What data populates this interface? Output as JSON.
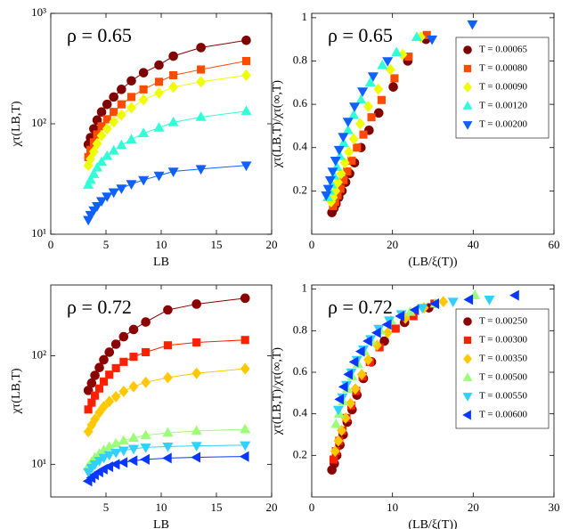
{
  "chart_data": [
    {
      "type": "line",
      "annotation": "ρ = 0.65",
      "xlabel": "LB",
      "ylabel": "χτ(LB,T)",
      "xlim": [
        0,
        20
      ],
      "xticks": [
        0,
        5,
        10,
        15,
        20
      ],
      "ylim": [
        10,
        1000
      ],
      "yscale": "log",
      "yticks": [
        {
          "value": 10,
          "label": "10¹"
        },
        {
          "value": 100,
          "label": "10²"
        },
        {
          "value": 1000,
          "label": "10³"
        }
      ],
      "x": [
        3.4,
        3.6,
        3.9,
        4.2,
        4.6,
        5.1,
        5.7,
        6.4,
        7.3,
        8.4,
        9.8,
        11.1,
        13.6,
        17.7
      ],
      "series": [
        {
          "color": "#800000",
          "marker": "o",
          "values": [
            65,
            75,
            90,
            108,
            128,
            150,
            175,
            205,
            245,
            290,
            340,
            410,
            490,
            570
          ]
        },
        {
          "color": "#ff4a00",
          "marker": "s",
          "values": [
            50,
            58,
            68,
            80,
            95,
            110,
            128,
            150,
            175,
            205,
            240,
            275,
            310,
            370
          ]
        },
        {
          "color": "#eeff00",
          "marker": "D",
          "values": [
            42,
            48,
            56,
            66,
            78,
            90,
            104,
            120,
            140,
            165,
            190,
            215,
            240,
            275
          ]
        },
        {
          "color": "#30ffd8",
          "marker": "^",
          "values": [
            28,
            31,
            35,
            40,
            45,
            51,
            57,
            64,
            72,
            82,
            92,
            103,
            115,
            130
          ]
        },
        {
          "color": "#1060ff",
          "marker": "v",
          "values": [
            13.5,
            15,
            16.5,
            18,
            20,
            22,
            24,
            26,
            28.5,
            31,
            34,
            37,
            39,
            42
          ]
        }
      ]
    },
    {
      "type": "scatter",
      "annotation": "ρ = 0.65",
      "xlabel": "(LB/ξ(T))",
      "ylabel": "χτ(LB,T)/χτ(∞,T)",
      "xlim": [
        0,
        60
      ],
      "xticks": [
        0,
        20,
        40,
        60
      ],
      "ylim": [
        0,
        1.02
      ],
      "yticks": [
        0.2,
        0.4,
        0.6,
        0.8,
        1
      ],
      "legend": "upper right",
      "series": [
        {
          "name": "T = 0.00065",
          "color": "#800000",
          "marker": "o",
          "x": [
            5,
            5.5,
            6,
            6.7,
            7.5,
            8.4,
            9.4,
            10.6,
            12.2,
            14.2,
            16.6,
            20.2,
            23.8,
            28.3
          ],
          "values": [
            0.1,
            0.12,
            0.14,
            0.17,
            0.2,
            0.24,
            0.28,
            0.33,
            0.4,
            0.48,
            0.56,
            0.68,
            0.8,
            0.9
          ]
        },
        {
          "name": "T = 0.00080",
          "color": "#ff4a00",
          "marker": "s",
          "x": [
            5.3,
            5.8,
            6.4,
            7.1,
            7.9,
            8.8,
            9.9,
            11.2,
            12.8,
            14.8,
            17.3,
            20.5,
            24,
            28.5
          ],
          "values": [
            0.13,
            0.15,
            0.18,
            0.21,
            0.25,
            0.29,
            0.34,
            0.4,
            0.46,
            0.54,
            0.62,
            0.72,
            0.82,
            0.92
          ]
        },
        {
          "name": "T = 0.00090",
          "color": "#eeff00",
          "marker": "D",
          "x": [
            4.8,
            5.3,
            5.9,
            6.5,
            7.3,
            8.2,
            9.2,
            10.4,
            12,
            14,
            16.5,
            19.5,
            22.5,
            27
          ],
          "values": [
            0.15,
            0.17,
            0.2,
            0.24,
            0.28,
            0.33,
            0.38,
            0.44,
            0.51,
            0.59,
            0.67,
            0.76,
            0.83,
            0.91
          ]
        },
        {
          "name": "T = 0.00120",
          "color": "#30ffd8",
          "marker": "^",
          "x": [
            4,
            4.4,
            4.9,
            5.5,
            6.2,
            7,
            7.9,
            9,
            10.4,
            12.2,
            14.5,
            17.5,
            21,
            26
          ],
          "values": [
            0.17,
            0.2,
            0.23,
            0.27,
            0.31,
            0.36,
            0.42,
            0.48,
            0.55,
            0.62,
            0.7,
            0.78,
            0.84,
            0.91
          ]
        },
        {
          "name": "T = 0.00200",
          "color": "#1060ff",
          "marker": "v",
          "x": [
            3.6,
            4.1,
            4.6,
            5.2,
            5.9,
            6.8,
            7.8,
            9,
            10.6,
            12.6,
            15.2,
            18.8,
            29.8,
            39.8
          ],
          "values": [
            0.18,
            0.21,
            0.25,
            0.29,
            0.34,
            0.39,
            0.45,
            0.52,
            0.59,
            0.66,
            0.73,
            0.8,
            0.9,
            0.97
          ]
        }
      ]
    },
    {
      "type": "line",
      "annotation": "ρ = 0.72",
      "xlabel": "LB",
      "ylabel": "χτ(LB,T)",
      "xlim": [
        0,
        20
      ],
      "xticks": [
        5,
        10,
        15,
        20
      ],
      "ylim": [
        5,
        450
      ],
      "yscale": "log",
      "yticks": [
        {
          "value": 10,
          "label": "10¹"
        },
        {
          "value": 100,
          "label": "10²"
        }
      ],
      "x": [
        3.4,
        3.7,
        4,
        4.4,
        4.8,
        5.3,
        5.9,
        6.6,
        7.5,
        8.6,
        10.6,
        13.2,
        17.6
      ],
      "series": [
        {
          "color": "#8b0000",
          "marker": "o",
          "values": [
            48,
            56,
            66,
            78,
            92,
            108,
            128,
            150,
            175,
            205,
            265,
            300,
            340
          ]
        },
        {
          "color": "#ff2000",
          "marker": "s",
          "values": [
            32,
            37,
            43,
            50,
            58,
            67,
            77,
            88,
            98,
            108,
            125,
            133,
            140
          ]
        },
        {
          "color": "#ffc800",
          "marker": "D",
          "values": [
            20,
            23,
            26,
            30,
            34,
            38,
            42,
            47,
            52,
            57,
            63,
            69,
            76
          ]
        },
        {
          "color": "#9cff78",
          "marker": "^",
          "values": [
            9.5,
            10.5,
            11.5,
            12.5,
            13.5,
            14.5,
            15.5,
            16.5,
            17.5,
            18.5,
            19.5,
            20.3,
            21
          ]
        },
        {
          "color": "#30d0ff",
          "marker": "v",
          "values": [
            8.5,
            9.3,
            10,
            10.8,
            11.5,
            12.2,
            12.8,
            13.4,
            13.9,
            14.3,
            14.6,
            14.8,
            15
          ]
        },
        {
          "color": "#0838ff",
          "marker": "<",
          "values": [
            7,
            7.5,
            8,
            8.5,
            9,
            9.5,
            10,
            10.4,
            10.8,
            11.1,
            11.4,
            11.6,
            11.8
          ]
        }
      ]
    },
    {
      "type": "scatter",
      "annotation": "ρ = 0.72",
      "xlabel": "(LB/ξ(T))",
      "ylabel": "χτ(LB,T)/χτ(∞,T)",
      "xlim": [
        0,
        30
      ],
      "xticks": [
        0,
        10,
        20,
        30
      ],
      "ylim": [
        0,
        1.02
      ],
      "yticks": [
        0.2,
        0.4,
        0.6,
        0.8,
        1
      ],
      "legend": "upper right",
      "series": [
        {
          "name": "T = 0.00250",
          "color": "#8b0000",
          "marker": "o",
          "x": [
            2.5,
            2.8,
            3.1,
            3.5,
            3.9,
            4.4,
            5,
            5.6,
            6.4,
            7.4,
            9,
            11.5,
            14.5
          ],
          "values": [
            0.13,
            0.16,
            0.2,
            0.25,
            0.3,
            0.36,
            0.42,
            0.49,
            0.57,
            0.65,
            0.75,
            0.84,
            0.91
          ]
        },
        {
          "name": "T = 0.00300",
          "color": "#ff2000",
          "marker": "s",
          "x": [
            2.7,
            3,
            3.4,
            3.8,
            4.3,
            4.9,
            5.5,
            6.3,
            7.2,
            8.4,
            10.4,
            12.6,
            15.2
          ],
          "values": [
            0.18,
            0.22,
            0.27,
            0.32,
            0.38,
            0.44,
            0.51,
            0.58,
            0.65,
            0.72,
            0.81,
            0.87,
            0.93
          ]
        },
        {
          "name": "T = 0.00350",
          "color": "#ffc800",
          "marker": "D",
          "x": [
            2.9,
            3.3,
            3.7,
            4.2,
            4.8,
            5.4,
            6.2,
            7,
            8.1,
            9.4,
            11.6,
            13.9,
            16.3
          ],
          "values": [
            0.22,
            0.27,
            0.32,
            0.38,
            0.45,
            0.52,
            0.59,
            0.66,
            0.73,
            0.79,
            0.86,
            0.91,
            0.94
          ]
        },
        {
          "name": "T = 0.00500",
          "color": "#9cff78",
          "marker": "^",
          "x": [
            3,
            3.4,
            3.9,
            4.4,
            5,
            5.7,
            6.5,
            7.4,
            8.5,
            9.8,
            12.2,
            15.3,
            20.2
          ],
          "values": [
            0.35,
            0.4,
            0.46,
            0.52,
            0.58,
            0.64,
            0.7,
            0.75,
            0.8,
            0.85,
            0.89,
            0.93,
            0.97
          ]
        },
        {
          "name": "T = 0.00550",
          "color": "#30d0ff",
          "marker": "v",
          "x": [
            3.3,
            3.8,
            4.3,
            4.9,
            5.6,
            6.4,
            7.3,
            8.3,
            9.6,
            11.1,
            13.7,
            17.5,
            22
          ],
          "values": [
            0.42,
            0.48,
            0.54,
            0.6,
            0.66,
            0.71,
            0.76,
            0.81,
            0.85,
            0.88,
            0.91,
            0.94,
            0.95
          ]
        },
        {
          "name": "T = 0.00600",
          "color": "#0838ff",
          "marker": "<",
          "x": [
            3.5,
            4,
            4.6,
            5.3,
            6.1,
            7,
            8.1,
            9.4,
            11,
            12.8,
            15.3,
            19.5,
            25.2
          ],
          "values": [
            0.47,
            0.53,
            0.59,
            0.65,
            0.7,
            0.75,
            0.79,
            0.83,
            0.87,
            0.9,
            0.93,
            0.95,
            0.97
          ]
        }
      ]
    }
  ]
}
